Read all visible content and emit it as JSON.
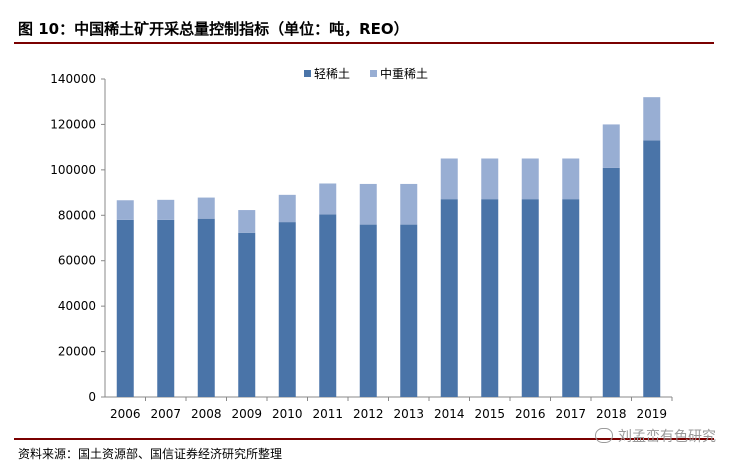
{
  "title": "图 10：中国稀土矿开采总量控制指标（单位：吨，REO）",
  "source": "资料来源：国土资源部、国信证券经济研究所整理",
  "watermark": "刘孟峦有色研究",
  "colors": {
    "light_rare_earth": "#4a74a8",
    "medium_heavy_rare_earth": "#98aed3",
    "rule": "#7a0000"
  },
  "chart_data": {
    "type": "bar",
    "stacked": true,
    "categories": [
      "2006",
      "2007",
      "2008",
      "2009",
      "2010",
      "2011",
      "2012",
      "2013",
      "2014",
      "2015",
      "2016",
      "2017",
      "2018",
      "2019"
    ],
    "series": [
      {
        "name": "轻稀土",
        "values": [
          78000,
          78000,
          78500,
          72300,
          77000,
          80400,
          75900,
          75900,
          87100,
          87100,
          87100,
          87100,
          100850,
          113000
        ]
      },
      {
        "name": "中重稀土",
        "values": [
          8620,
          8800,
          9300,
          10000,
          12000,
          13600,
          17900,
          17900,
          17900,
          17900,
          17900,
          17900,
          19150,
          19000
        ]
      }
    ],
    "ylim": [
      0,
      140000
    ],
    "yticks": [
      "0",
      "20000",
      "40000",
      "60000",
      "80000",
      "100000",
      "120000",
      "140000"
    ],
    "legend": "top",
    "grid": false,
    "xlabel": "",
    "ylabel": ""
  }
}
